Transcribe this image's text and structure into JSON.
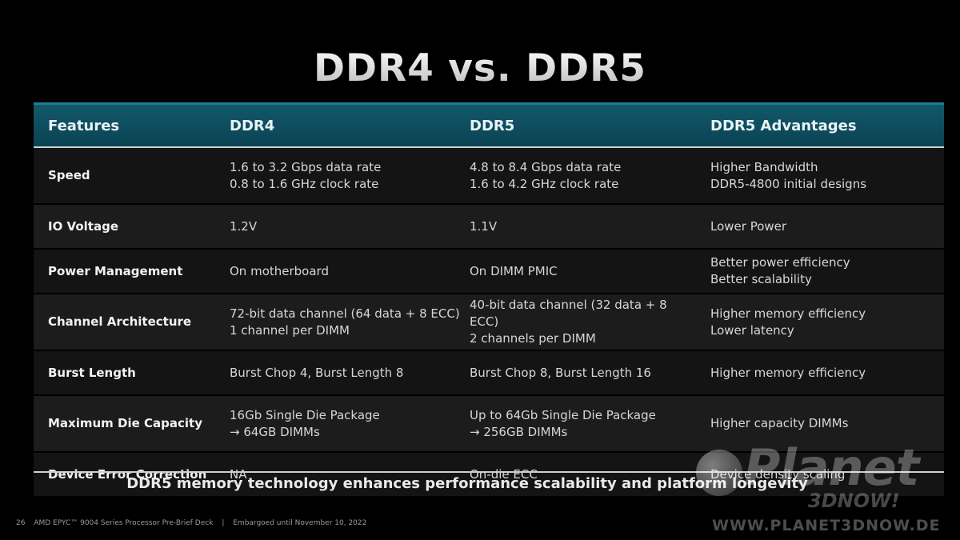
{
  "title": "DDR4 vs. DDR5",
  "table": {
    "headers": [
      "Features",
      "DDR4",
      "DDR5",
      "DDR5 Advantages"
    ],
    "rows": [
      {
        "feature": "Speed",
        "ddr4": [
          "1.6 to 3.2 Gbps data rate",
          "0.8 to 1.6 GHz clock rate"
        ],
        "ddr5": [
          "4.8 to 8.4 Gbps data rate",
          "1.6 to 4.2 GHz clock rate"
        ],
        "adv": [
          "Higher Bandwidth",
          "DDR5-4800 initial designs"
        ]
      },
      {
        "feature": "IO Voltage",
        "ddr4": [
          "1.2V"
        ],
        "ddr5": [
          "1.1V"
        ],
        "adv": [
          "Lower Power"
        ]
      },
      {
        "feature": "Power Management",
        "ddr4": [
          "On motherboard"
        ],
        "ddr5": [
          "On DIMM PMIC"
        ],
        "adv": [
          "Better power efficiency",
          "Better scalability"
        ]
      },
      {
        "feature": "Channel Architecture",
        "ddr4": [
          "72-bit data channel (64 data + 8 ECC)",
          "1 channel per DIMM"
        ],
        "ddr5": [
          "40-bit data channel (32 data + 8",
          "ECC)",
          "2 channels per DIMM"
        ],
        "adv": [
          "Higher memory efficiency",
          "Lower latency"
        ]
      },
      {
        "feature": "Burst Length",
        "ddr4": [
          "Burst Chop 4, Burst Length 8"
        ],
        "ddr5": [
          "Burst Chop 8, Burst Length 16"
        ],
        "adv": [
          "Higher memory efficiency"
        ]
      },
      {
        "feature": "Maximum Die Capacity",
        "ddr4": [
          "16Gb Single Die Package",
          "→ 64GB DIMMs"
        ],
        "ddr5": [
          "Up to 64Gb Single Die Package",
          "→ 256GB DIMMs"
        ],
        "adv": [
          "Higher capacity DIMMs"
        ]
      },
      {
        "feature": "Device Error Correction",
        "ddr4": [
          "NA"
        ],
        "ddr5": [
          "On-die ECC"
        ],
        "adv": [
          "Device density scaling"
        ]
      }
    ]
  },
  "tagline": "DDR5 memory technology enhances performance scalability and platform longevity",
  "footer": {
    "page_number": "26",
    "deck": "AMD EPYC™ 9004 Series Processor Pre-Brief Deck",
    "separator": "|",
    "embargo": "Embargoed until November 10, 2022"
  },
  "watermark": {
    "word": "Planet",
    "sub": "3DNOW!",
    "url": "WWW.PLANET3DNOW.DE"
  },
  "colors": {
    "header_bg": "#0f4f60",
    "header_top_line": "#1f7f95",
    "row_dark": "#141414",
    "row_light": "#1c1c1c"
  }
}
